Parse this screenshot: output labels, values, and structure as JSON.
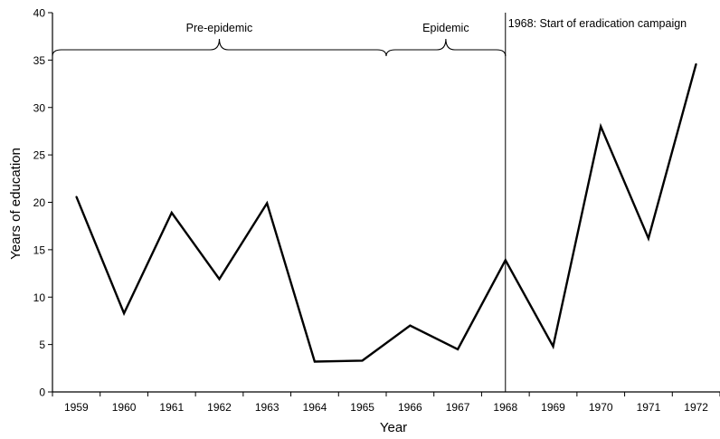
{
  "chart_data": {
    "type": "line",
    "xlabel": "Year",
    "ylabel": "Years of education",
    "ylim": [
      0,
      40
    ],
    "yticks": [
      0,
      5,
      10,
      15,
      20,
      25,
      30,
      35,
      40
    ],
    "categories": [
      "1959",
      "1960",
      "1961",
      "1962",
      "1963",
      "1964",
      "1965",
      "1966",
      "1967",
      "1968",
      "1969",
      "1970",
      "1971",
      "1972"
    ],
    "series": [
      {
        "values": [
          20.6,
          8.3,
          18.9,
          11.9,
          19.9,
          3.2,
          3.3,
          7.0,
          4.5,
          13.9,
          4.8,
          28.0,
          16.2,
          34.6
        ]
      }
    ],
    "grid": false,
    "line_color": "#000000",
    "annotations": {
      "pre_epidemic": {
        "label": "Pre-epidemic",
        "from": 1959,
        "to": 1965.5
      },
      "epidemic": {
        "label": "Epidemic",
        "from": 1965.5,
        "to": 1968
      },
      "campaign": {
        "label": "1968: Start of eradication campaign",
        "x": 1968
      }
    }
  }
}
